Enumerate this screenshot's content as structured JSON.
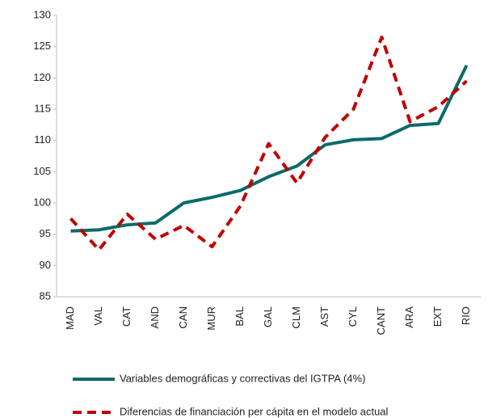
{
  "chart_data": {
    "type": "line",
    "categories": [
      "MAD",
      "VAL",
      "CAT",
      "AND",
      "CAN",
      "MUR",
      "BAL",
      "GAL",
      "CLM",
      "AST",
      "CYL",
      "CANT",
      "ARA",
      "EXT",
      "RIO"
    ],
    "series": [
      {
        "name": "Variables demográficas y correctivas del IGTPA (4%)",
        "color": "#0b6a68",
        "dash": false,
        "values": [
          95.5,
          95.7,
          96.5,
          96.8,
          100,
          100.9,
          102,
          104.2,
          105.9,
          109.3,
          110.1,
          110.3,
          112.4,
          112.7,
          122
        ]
      },
      {
        "name": "Diferencias de financiación per cápita en el modelo actual",
        "color": "#c00000",
        "dash": true,
        "values": [
          97.5,
          92.5,
          98.2,
          94.2,
          96.4,
          93,
          99.5,
          109.5,
          103.2,
          110.5,
          115,
          126.5,
          113,
          115.4,
          119.5
        ]
      }
    ],
    "ylim": [
      85,
      130
    ],
    "yticks": [
      85,
      90,
      95,
      100,
      105,
      110,
      115,
      120,
      125,
      130
    ],
    "grid": false,
    "legend": "bottom"
  }
}
